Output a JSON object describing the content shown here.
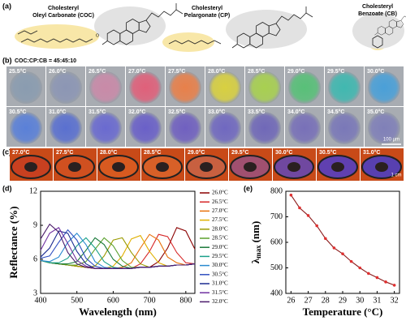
{
  "panel_labels": [
    "(a)",
    "(b)",
    "(c)",
    "(d)",
    "(e)"
  ],
  "structures": [
    {
      "line1": "Cholesteryl",
      "line2": "Oleyl Carbonate (COC)"
    },
    {
      "line1": "Cholesteryl",
      "line2": "Pelargonate (CP)"
    },
    {
      "line1": "Cholesteryl",
      "line2": "Benzoate (CB)"
    }
  ],
  "microscopy": {
    "ratio": "COC:CP:CB = 45:45:10",
    "scale_bar": "100 µm",
    "images": [
      {
        "label": "25.5°C",
        "color": "#8a9cb0"
      },
      {
        "label": "26.0°C",
        "color": "#8c96b4"
      },
      {
        "label": "26.5°C",
        "color": "#c98aa8"
      },
      {
        "label": "27.0°C",
        "color": "#e0607a"
      },
      {
        "label": "27.5°C",
        "color": "#e8804a"
      },
      {
        "label": "28.0°C",
        "color": "#d8d040"
      },
      {
        "label": "28.5°C",
        "color": "#a8d050"
      },
      {
        "label": "29.0°C",
        "color": "#58c078"
      },
      {
        "label": "29.5°C",
        "color": "#40b8b0"
      },
      {
        "label": "30.0°C",
        "color": "#4aa0d8"
      },
      {
        "label": "30.5°C",
        "color": "#5a80d8"
      },
      {
        "label": "31.0°C",
        "color": "#5a70d0"
      },
      {
        "label": "31.5°C",
        "color": "#6a6ad0"
      },
      {
        "label": "32.0°C",
        "color": "#6a60c8"
      },
      {
        "label": "32.5°C",
        "color": "#7060c0"
      },
      {
        "label": "33.0°C",
        "color": "#7068c0"
      },
      {
        "label": "33.5°C",
        "color": "#7068b8"
      },
      {
        "label": "34.0°C",
        "color": "#7870b8"
      },
      {
        "label": "34.5°C",
        "color": "#7a78b8"
      },
      {
        "label": "35.0°C",
        "color": "#8080b8"
      }
    ]
  },
  "photos": {
    "scale_bar": "1 cm",
    "images": [
      {
        "label": "27.0°C",
        "color": "#c84020"
      },
      {
        "label": "27.5°C",
        "color": "#d05020"
      },
      {
        "label": "28.0°C",
        "color": "#d85a20"
      },
      {
        "label": "28.5°C",
        "color": "#d86028"
      },
      {
        "label": "29.0°C",
        "color": "#c86040"
      },
      {
        "label": "29.5°C",
        "color": "#a05070"
      },
      {
        "label": "30.0°C",
        "color": "#7048a0"
      },
      {
        "label": "30.5°C",
        "color": "#6040b0"
      },
      {
        "label": "31.0°C",
        "color": "#5840b0"
      }
    ]
  },
  "chart_data": [
    {
      "type": "line",
      "xlabel": "Wavelength (nm)",
      "ylabel": "Reflectance (%)",
      "x": [
        400,
        425,
        450,
        475,
        500,
        525,
        550,
        575,
        600,
        625,
        650,
        675,
        700,
        725,
        750,
        775,
        800,
        825
      ],
      "xlim": [
        400,
        825
      ],
      "ylim": [
        3,
        12
      ],
      "xticks": [
        400,
        500,
        600,
        700,
        800
      ],
      "yticks": [
        3,
        6,
        9,
        12
      ],
      "series": [
        {
          "name": "26.0°C",
          "color": "#8b0000",
          "values": [
            5.9,
            5.7,
            5.6,
            5.5,
            5.4,
            5.3,
            5.2,
            5.2,
            5.2,
            5.2,
            5.2,
            5.3,
            5.3,
            5.8,
            7.0,
            8.8,
            8.5,
            6.9
          ]
        },
        {
          "name": "26.5°C",
          "color": "#d62728",
          "values": [
            5.9,
            5.7,
            5.6,
            5.5,
            5.4,
            5.3,
            5.2,
            5.2,
            5.2,
            5.2,
            5.2,
            5.6,
            6.7,
            8.2,
            8.0,
            6.6,
            5.7,
            5.6
          ]
        },
        {
          "name": "27.0°C",
          "color": "#e8700a",
          "values": [
            5.9,
            5.7,
            5.6,
            5.5,
            5.4,
            5.3,
            5.2,
            5.2,
            5.2,
            5.3,
            5.7,
            7.0,
            8.2,
            7.7,
            6.2,
            5.7,
            5.5,
            5.6
          ]
        },
        {
          "name": "27.5°C",
          "color": "#e0b000",
          "values": [
            5.9,
            5.7,
            5.6,
            5.5,
            5.4,
            5.3,
            5.2,
            5.2,
            5.4,
            6.3,
            7.8,
            8.1,
            6.7,
            5.7,
            5.4,
            5.5,
            5.5,
            5.6
          ]
        },
        {
          "name": "28.0°C",
          "color": "#9a9a00",
          "values": [
            5.9,
            5.7,
            5.6,
            5.5,
            5.4,
            5.3,
            5.4,
            6.3,
            7.7,
            7.9,
            6.6,
            5.6,
            5.3,
            5.4,
            5.4,
            5.5,
            5.5,
            5.6
          ]
        },
        {
          "name": "28.5°C",
          "color": "#5aa02c",
          "values": [
            5.9,
            5.7,
            5.6,
            5.5,
            5.5,
            5.8,
            6.9,
            7.9,
            7.2,
            5.9,
            5.3,
            5.3,
            5.3,
            5.4,
            5.4,
            5.5,
            5.5,
            5.6
          ]
        },
        {
          "name": "29.0°C",
          "color": "#1a7a3a",
          "values": [
            5.9,
            5.7,
            5.6,
            5.6,
            5.8,
            6.8,
            7.9,
            7.3,
            6.0,
            5.4,
            5.2,
            5.3,
            5.3,
            5.4,
            5.4,
            5.5,
            5.5,
            5.6
          ]
        },
        {
          "name": "29.5°C",
          "color": "#1aa08a",
          "values": [
            5.9,
            5.7,
            5.7,
            6.1,
            7.2,
            7.9,
            7.0,
            5.8,
            5.3,
            5.2,
            5.2,
            5.3,
            5.3,
            5.4,
            5.4,
            5.5,
            5.5,
            5.6
          ]
        },
        {
          "name": "30.0°C",
          "color": "#2a8ad0",
          "values": [
            5.9,
            5.8,
            6.2,
            7.5,
            8.3,
            7.3,
            5.8,
            5.3,
            5.2,
            5.2,
            5.2,
            5.3,
            5.3,
            5.4,
            5.4,
            5.5,
            5.5,
            5.6
          ]
        },
        {
          "name": "30.5°C",
          "color": "#3050c0",
          "values": [
            6.1,
            6.3,
            7.5,
            8.6,
            7.7,
            6.1,
            5.4,
            5.2,
            5.2,
            5.2,
            5.2,
            5.3,
            5.3,
            5.4,
            5.4,
            5.5,
            5.5,
            5.6
          ]
        },
        {
          "name": "31.0°C",
          "color": "#1a2a90",
          "values": [
            6.2,
            7.0,
            8.5,
            8.3,
            6.7,
            5.6,
            5.2,
            5.2,
            5.2,
            5.2,
            5.2,
            5.3,
            5.3,
            5.4,
            5.4,
            5.5,
            5.5,
            5.6
          ]
        },
        {
          "name": "31.5°C",
          "color": "#7030a0",
          "values": [
            6.8,
            8.3,
            8.8,
            7.4,
            5.9,
            5.4,
            5.2,
            5.2,
            5.2,
            5.2,
            5.2,
            5.3,
            5.3,
            5.4,
            5.4,
            5.5,
            5.5,
            5.6
          ]
        },
        {
          "name": "32.0°C",
          "color": "#4a1a6a",
          "values": [
            7.8,
            9.1,
            8.4,
            6.6,
            5.6,
            5.3,
            5.2,
            5.2,
            5.2,
            5.2,
            5.2,
            5.3,
            5.3,
            5.4,
            5.4,
            5.5,
            5.5,
            5.6
          ]
        }
      ]
    },
    {
      "type": "line",
      "xlabel": "Temperature (°C)",
      "ylabel_symbol": "λ",
      "ylabel_subscript": "max",
      "ylabel_unit": "(nm)",
      "x": [
        26,
        26.5,
        27,
        27.5,
        28,
        28.5,
        29,
        29.5,
        30,
        30.5,
        31,
        31.5,
        32
      ],
      "xlim": [
        25.7,
        32.3
      ],
      "ylim": [
        400,
        800
      ],
      "xticks": [
        26,
        27,
        28,
        29,
        30,
        31,
        32
      ],
      "yticks": [
        400,
        500,
        600,
        700,
        800
      ],
      "series": [
        {
          "color": "#8b1a1a",
          "marker_color": "#e03030",
          "values": [
            785,
            735,
            705,
            665,
            615,
            578,
            555,
            525,
            500,
            478,
            462,
            445,
            432
          ]
        }
      ]
    }
  ]
}
